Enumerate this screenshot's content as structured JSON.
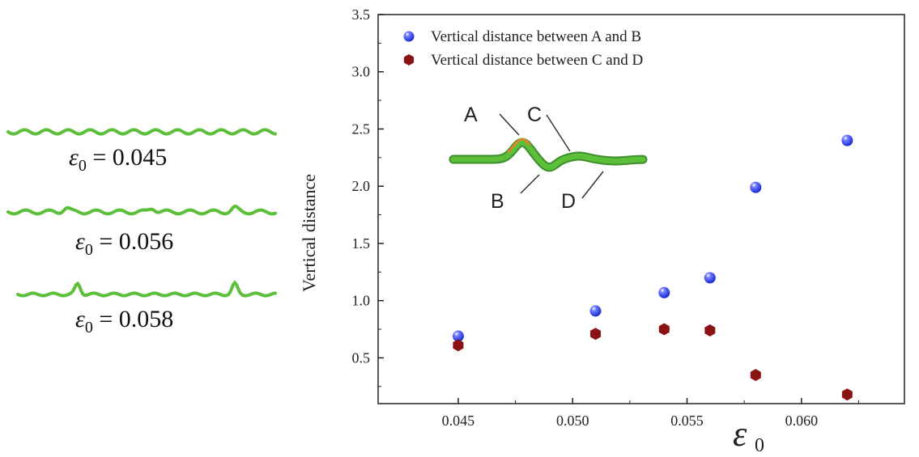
{
  "strain_labels": [
    {
      "symbol": "ε",
      "subscript": "0",
      "value": "= 0.045"
    },
    {
      "symbol": "ε",
      "subscript": "0",
      "value": "= 0.056"
    },
    {
      "symbol": "ε",
      "subscript": "0",
      "value": "= 0.058"
    }
  ],
  "colors": {
    "fiber": "#5cbf3a",
    "fiber_dark": "#3c8f2a",
    "fiber_tip": "#d98a2a",
    "series_ab": "#1a2ad0",
    "series_cd": "#8a1414",
    "axis": "#222222"
  },
  "inset_labels": {
    "a": "A",
    "b": "B",
    "c": "C",
    "d": "D"
  },
  "chart_data": {
    "type": "scatter",
    "title": "",
    "xlabel": "ε",
    "xlabel_subscript": "0",
    "ylabel": "Vertical distance",
    "xlim": [
      0.0415,
      0.0645
    ],
    "ylim": [
      0.1,
      3.5
    ],
    "xticks": [
      "0.045",
      "0.050",
      "0.055",
      "0.060"
    ],
    "yticks": [
      "0.5",
      "1.0",
      "1.5",
      "2.0",
      "2.5",
      "3.0",
      "3.5"
    ],
    "grid": false,
    "legend_position": "top-left",
    "series": [
      {
        "name": "Vertical distance between A and B",
        "marker": "circle",
        "x": [
          0.045,
          0.051,
          0.054,
          0.056,
          0.058,
          0.062
        ],
        "y": [
          0.69,
          0.91,
          1.07,
          1.2,
          1.99,
          2.4
        ]
      },
      {
        "name": "Vertical distance between C and D",
        "marker": "hexagon",
        "x": [
          0.045,
          0.051,
          0.054,
          0.056,
          0.058,
          0.062
        ],
        "y": [
          0.61,
          0.71,
          0.75,
          0.74,
          0.35,
          0.18
        ]
      }
    ]
  }
}
